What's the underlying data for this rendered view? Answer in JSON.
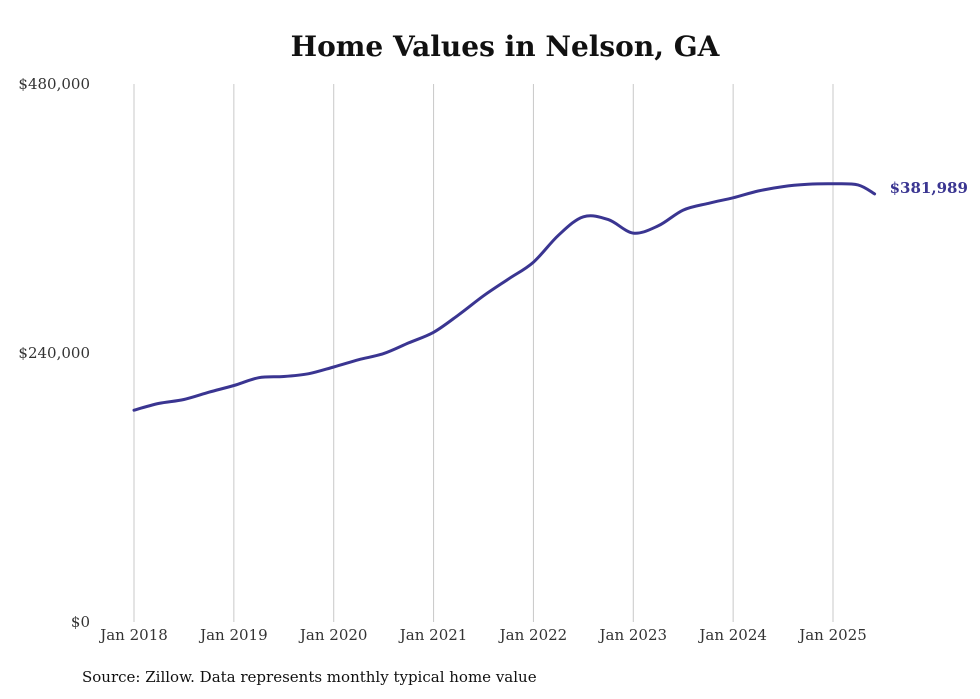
{
  "chart_data": {
    "type": "line",
    "title": "Home Values in Nelson, GA",
    "xlabel": "",
    "ylabel": "",
    "ylim": [
      0,
      480000
    ],
    "y_ticks": [
      0,
      240000,
      480000
    ],
    "y_tick_labels": [
      "$0",
      "$240,000",
      "$480,000"
    ],
    "x_ticks": [
      "Jan 2018",
      "Jan 2019",
      "Jan 2020",
      "Jan 2021",
      "Jan 2022",
      "Jan 2023",
      "Jan 2024",
      "Jan 2025"
    ],
    "grid": "vertical",
    "line_color": "#3a3591",
    "series": [
      {
        "x": [
          "2018-01",
          "2018-04",
          "2018-07",
          "2018-10",
          "2019-01",
          "2019-04",
          "2019-07",
          "2019-10",
          "2020-01",
          "2020-04",
          "2020-07",
          "2020-10",
          "2021-01",
          "2021-04",
          "2021-07",
          "2021-10",
          "2022-01",
          "2022-04",
          "2022-07",
          "2022-10",
          "2023-01",
          "2023-04",
          "2023-07",
          "2023-10",
          "2024-01",
          "2024-04",
          "2024-07",
          "2024-10",
          "2025-01",
          "2025-04",
          "2025-06"
        ],
        "values": [
          189000,
          195000,
          198500,
          205000,
          211000,
          218000,
          219000,
          221500,
          227500,
          234000,
          239500,
          249000,
          258500,
          274000,
          291000,
          306000,
          321000,
          345000,
          361500,
          359000,
          347000,
          353500,
          367500,
          373500,
          378500,
          384500,
          388500,
          390500,
          391000,
          390000,
          381989
        ]
      }
    ],
    "end_label": "$381,989"
  },
  "source": "Source: Zillow. Data represents monthly typical home value"
}
